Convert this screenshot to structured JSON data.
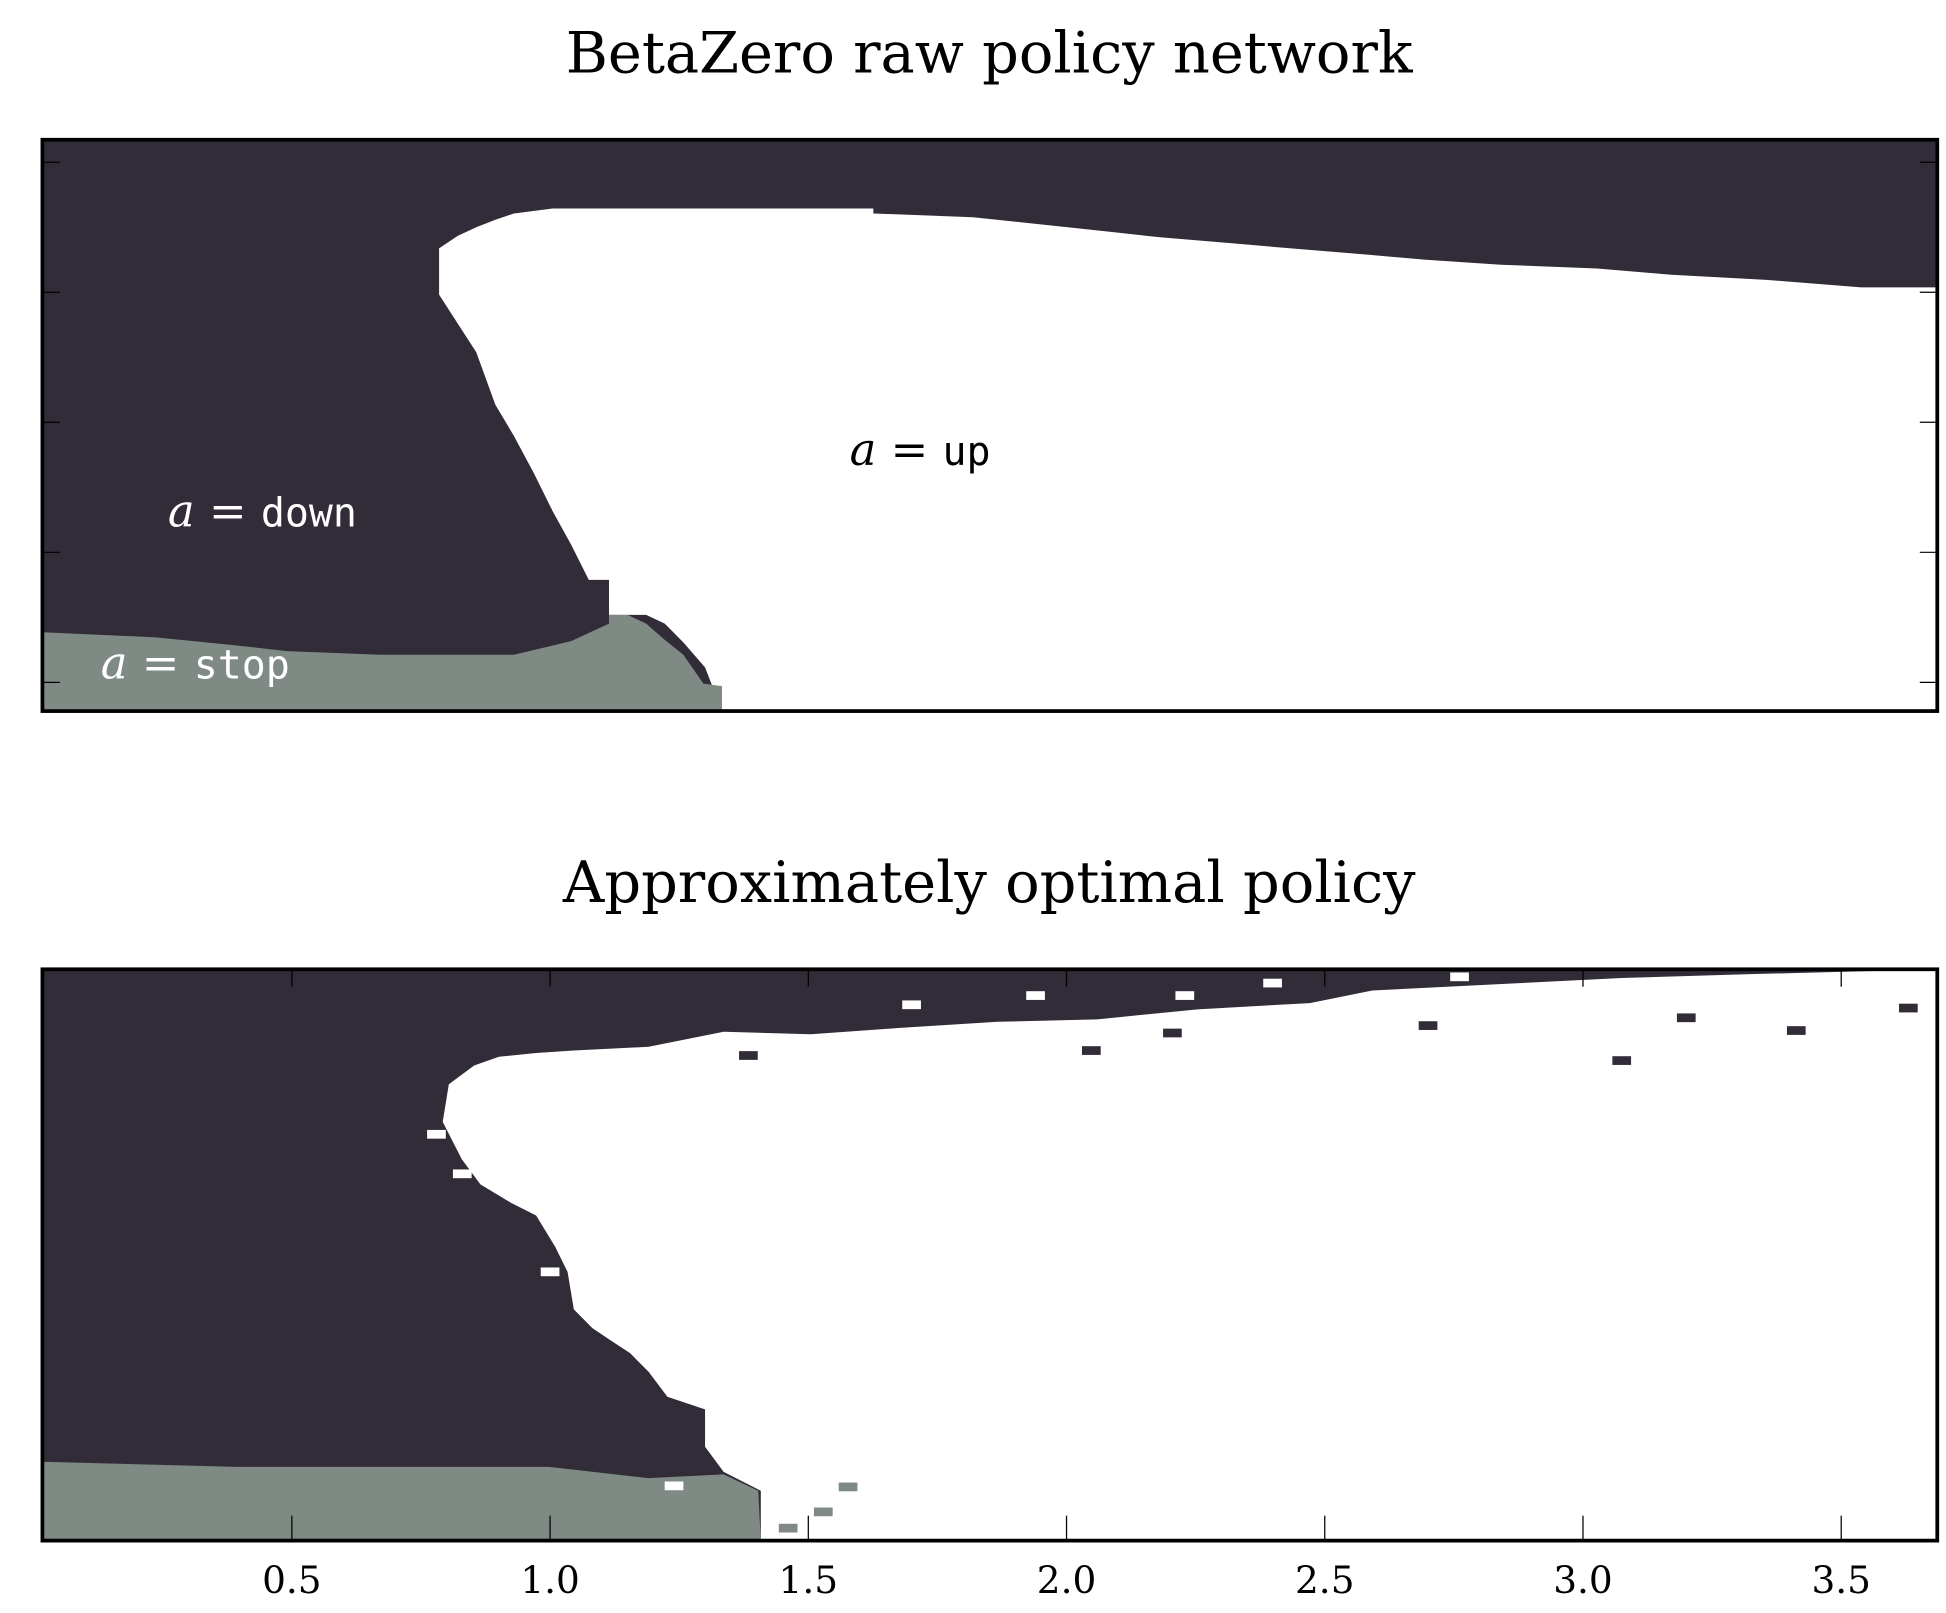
{
  "chart_data": [
    {
      "type": "heatmap",
      "title": "BetaZero raw policy network",
      "xlabel": "",
      "ylabel": "",
      "xlim": [
        0.017,
        3.686
      ],
      "ylim": [
        -0.221,
        4.173
      ],
      "y_ticks": [
        0,
        1,
        2,
        3,
        4
      ],
      "x_ticks": [],
      "colors": {
        "down": "#322c39",
        "up": "#ffffff",
        "stop": "#7f8a84"
      },
      "background_class": "down",
      "regions": [
        {
          "class": "up",
          "points": [
            [
              1.333,
              -0.221
            ],
            [
              1.3,
              0.115
            ],
            [
              1.258,
              0.308
            ],
            [
              1.222,
              0.452
            ],
            [
              1.186,
              0.519
            ],
            [
              1.114,
              0.519
            ],
            [
              1.114,
              0.788
            ],
            [
              1.075,
              0.788
            ],
            [
              1.041,
              1.058
            ],
            [
              1.005,
              1.317
            ],
            [
              0.969,
              1.606
            ],
            [
              0.93,
              1.894
            ],
            [
              0.894,
              2.135
            ],
            [
              0.857,
              2.538
            ],
            [
              0.821,
              2.76
            ],
            [
              0.785,
              2.981
            ],
            [
              0.785,
              3.337
            ],
            [
              0.821,
              3.433
            ],
            [
              0.857,
              3.5
            ],
            [
              0.894,
              3.558
            ],
            [
              0.93,
              3.606
            ],
            [
              1.005,
              3.644
            ],
            [
              1.626,
              3.644
            ],
            [
              1.626,
              3.606
            ],
            [
              1.819,
              3.577
            ],
            [
              1.959,
              3.519
            ],
            [
              2.07,
              3.471
            ],
            [
              2.181,
              3.423
            ],
            [
              2.326,
              3.375
            ],
            [
              2.435,
              3.337
            ],
            [
              2.585,
              3.288
            ],
            [
              2.696,
              3.25
            ],
            [
              2.841,
              3.212
            ],
            [
              3.027,
              3.183
            ],
            [
              3.171,
              3.135
            ],
            [
              3.355,
              3.096
            ],
            [
              3.539,
              3.038
            ],
            [
              3.686,
              3.038
            ],
            [
              3.686,
              -0.221
            ]
          ]
        },
        {
          "class": "stop",
          "points": [
            [
              0.017,
              0.385
            ],
            [
              0.237,
              0.346
            ],
            [
              0.382,
              0.288
            ],
            [
              0.49,
              0.24
            ],
            [
              0.671,
              0.212
            ],
            [
              0.93,
              0.212
            ],
            [
              1.041,
              0.317
            ],
            [
              1.114,
              0.452
            ],
            [
              1.114,
              0.519
            ],
            [
              1.15,
              0.519
            ],
            [
              1.186,
              0.452
            ],
            [
              1.222,
              0.327
            ],
            [
              1.258,
              0.212
            ],
            [
              1.297,
              -0.01
            ],
            [
              1.333,
              -0.029
            ],
            [
              1.333,
              -0.221
            ],
            [
              0.017,
              -0.221
            ]
          ]
        }
      ],
      "cells": [],
      "annotations": [
        {
          "math": "a",
          "eq": "=",
          "action": "down",
          "x": 0.26,
          "y": 1.2,
          "color": "#ffffff"
        },
        {
          "math": "a",
          "eq": "=",
          "action": "up",
          "x": 1.58,
          "y": 1.67,
          "color": "#000000"
        },
        {
          "math": "a",
          "eq": "=",
          "action": "stop",
          "x": 0.13,
          "y": 0.03,
          "color": "#ffffff"
        }
      ]
    },
    {
      "type": "heatmap",
      "title": "Approximately optimal policy",
      "xlabel": "",
      "ylabel": "",
      "xlim": [
        0.017,
        3.686
      ],
      "ylim": [
        -0.221,
        4.173
      ],
      "x_ticks": [
        0.5,
        1.0,
        1.5,
        2.0,
        2.5,
        3.0,
        3.5
      ],
      "x_tick_labels": [
        "0.5",
        "1.0",
        "1.5",
        "2.0",
        "2.5",
        "3.0",
        "3.5"
      ],
      "y_ticks": [],
      "colors": {
        "down": "#322c39",
        "up": "#ffffff",
        "stop": "#7f8a84"
      },
      "background_class": "down",
      "regions": [
        {
          "class": "up",
          "points": [
            [
              1.408,
              -0.221
            ],
            [
              1.408,
              0.163
            ],
            [
              1.336,
              0.308
            ],
            [
              1.3,
              0.5
            ],
            [
              1.3,
              0.788
            ],
            [
              1.227,
              0.885
            ],
            [
              1.191,
              1.077
            ],
            [
              1.155,
              1.221
            ],
            [
              1.118,
              1.317
            ],
            [
              1.082,
              1.413
            ],
            [
              1.046,
              1.558
            ],
            [
              1.034,
              1.846
            ],
            [
              1.01,
              2.038
            ],
            [
              0.973,
              2.279
            ],
            [
              0.925,
              2.375
            ],
            [
              0.865,
              2.519
            ],
            [
              0.829,
              2.712
            ],
            [
              0.792,
              3.0
            ],
            [
              0.804,
              3.288
            ],
            [
              0.853,
              3.433
            ],
            [
              0.901,
              3.5
            ],
            [
              0.973,
              3.529
            ],
            [
              1.046,
              3.548
            ],
            [
              1.191,
              3.577
            ],
            [
              1.336,
              3.692
            ],
            [
              1.505,
              3.673
            ],
            [
              1.674,
              3.721
            ],
            [
              1.867,
              3.769
            ],
            [
              2.06,
              3.788
            ],
            [
              2.254,
              3.865
            ],
            [
              2.471,
              3.913
            ],
            [
              2.592,
              4.01
            ],
            [
              2.833,
              4.058
            ],
            [
              3.075,
              4.106
            ],
            [
              3.316,
              4.135
            ],
            [
              3.686,
              4.173
            ],
            [
              3.686,
              -0.221
            ]
          ]
        },
        {
          "class": "stop",
          "points": [
            [
              0.017,
              0.385
            ],
            [
              0.394,
              0.346
            ],
            [
              0.998,
              0.346
            ],
            [
              1.191,
              0.26
            ],
            [
              1.336,
              0.288
            ],
            [
              1.403,
              0.163
            ],
            [
              1.408,
              -0.221
            ],
            [
              0.017,
              -0.221
            ]
          ]
        }
      ],
      "cells": [
        {
          "x": 3.075,
          "y": 3.471,
          "class": "down"
        },
        {
          "x": 1.384,
          "y": 3.51,
          "class": "down"
        },
        {
          "x": 2.048,
          "y": 3.548,
          "class": "down"
        },
        {
          "x": 3.413,
          "y": 3.702,
          "class": "down"
        },
        {
          "x": 3.63,
          "y": 3.875,
          "class": "down"
        },
        {
          "x": 2.205,
          "y": 3.683,
          "class": "down"
        },
        {
          "x": 2.7,
          "y": 3.74,
          "class": "down"
        },
        {
          "x": 3.2,
          "y": 3.8,
          "class": "down"
        },
        {
          "x": 1.94,
          "y": 3.971,
          "class": "up"
        },
        {
          "x": 2.229,
          "y": 3.971,
          "class": "up"
        },
        {
          "x": 2.399,
          "y": 4.067,
          "class": "up"
        },
        {
          "x": 2.761,
          "y": 4.115,
          "class": "up"
        },
        {
          "x": 3.5,
          "y": 4.11,
          "class": "up"
        },
        {
          "x": 1.7,
          "y": 3.9,
          "class": "up"
        },
        {
          "x": 0.78,
          "y": 2.904,
          "class": "up"
        },
        {
          "x": 1.0,
          "y": 1.846,
          "class": "up"
        },
        {
          "x": 0.83,
          "y": 2.6,
          "class": "up"
        },
        {
          "x": 1.577,
          "y": 0.192,
          "class": "stop"
        },
        {
          "x": 1.529,
          "y": 0.0,
          "class": "stop"
        },
        {
          "x": 1.461,
          "y": -0.125,
          "class": "stop"
        },
        {
          "x": 1.24,
          "y": 0.2,
          "class": "up"
        }
      ],
      "annotations": []
    }
  ]
}
